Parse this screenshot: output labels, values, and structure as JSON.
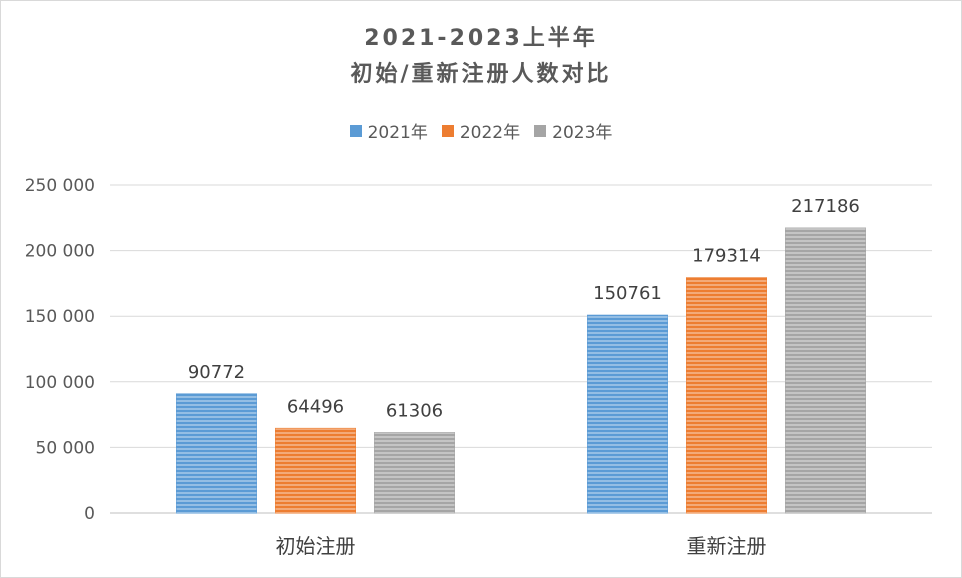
{
  "chart_data": {
    "type": "bar",
    "title_line1": "2021-2023上半年",
    "title_line2": "初始/重新注册人数对比",
    "categories": [
      "初始注册",
      "重新注册"
    ],
    "series": [
      {
        "name": "2021年",
        "values": [
          90772,
          150761
        ],
        "color": "#5b9bd5"
      },
      {
        "name": "2022年",
        "values": [
          64496,
          179314
        ],
        "color": "#ed7d31"
      },
      {
        "name": "2023年",
        "values": [
          61306,
          217186
        ],
        "color": "#a5a5a5"
      }
    ],
    "ylim": [
      0,
      250000
    ],
    "yticks": [
      0,
      50000,
      100000,
      150000,
      200000,
      250000
    ],
    "ytick_labels": [
      "0",
      "50 000",
      "100 000",
      "150 000",
      "200 000",
      "250 000"
    ],
    "grid": true,
    "legend_position": "top"
  }
}
